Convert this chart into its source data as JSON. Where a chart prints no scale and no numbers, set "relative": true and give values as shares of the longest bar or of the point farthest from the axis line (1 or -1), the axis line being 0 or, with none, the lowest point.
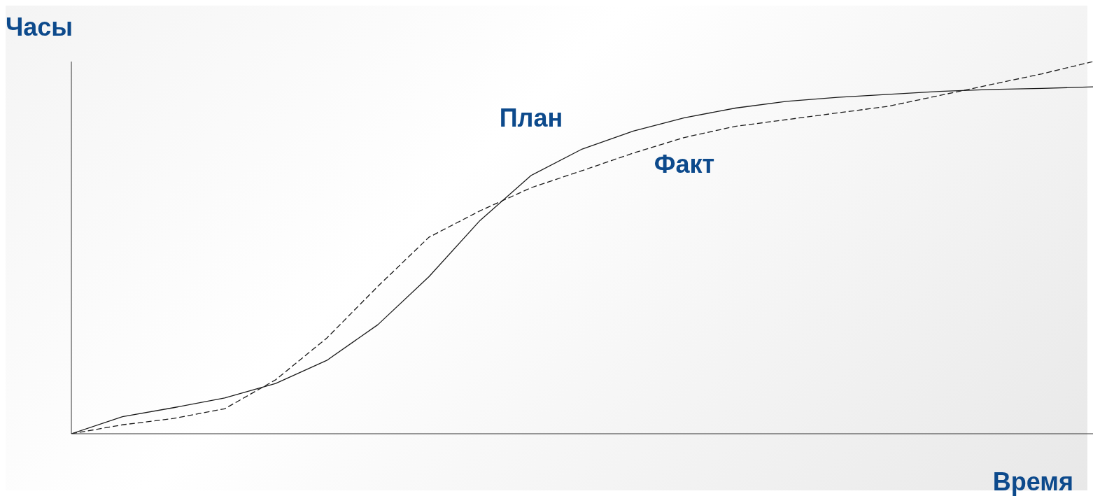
{
  "chart_data": {
    "type": "line",
    "relative": true,
    "ylabel": "Часы",
    "xlabel": "Время",
    "categories": [
      null,
      null,
      null,
      null,
      null,
      null,
      null,
      null,
      null,
      null,
      null,
      null,
      null,
      null,
      null,
      null,
      null,
      null,
      null,
      null,
      null
    ],
    "marker": "none",
    "grid": false,
    "legend": false,
    "series": [
      {
        "name": "План",
        "color": "#1a1a1a",
        "line_style": "solid",
        "values": [
          0,
          0.046,
          0.07,
          0.096,
          0.135,
          0.197,
          0.293,
          0.422,
          0.573,
          0.694,
          0.765,
          0.813,
          0.849,
          0.875,
          0.893,
          0.904,
          0.912,
          0.92,
          0.925,
          0.928,
          0.932
        ]
      },
      {
        "name": "Факт",
        "color": "#1a1a1a",
        "line_style": "dashed",
        "values": [
          0,
          0.024,
          0.041,
          0.067,
          0.145,
          0.257,
          0.396,
          0.528,
          0.599,
          0.661,
          0.707,
          0.754,
          0.796,
          0.826,
          0.844,
          0.862,
          0.88,
          0.909,
          0.938,
          0.967,
          1
        ]
      }
    ]
  }
}
